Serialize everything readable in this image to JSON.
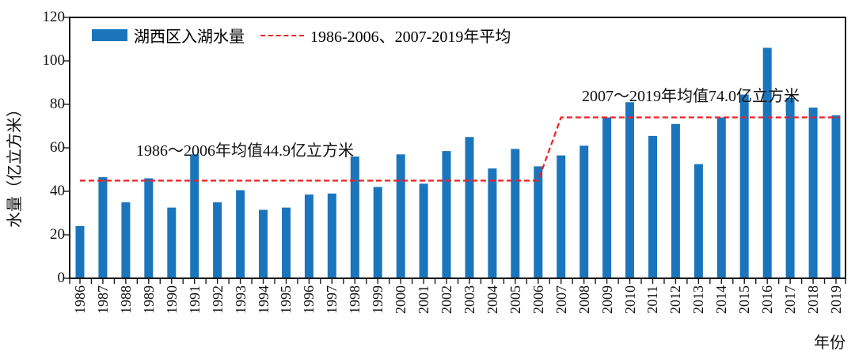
{
  "figure": {
    "ylabel": "水量（亿立方米）",
    "xlabel": "年份",
    "legend": {
      "bar_label": "湖西区入湖水量",
      "line_label": "1986-2006、2007-2019年平均"
    },
    "annotations": {
      "period1": "1986～2006年均值44.9亿立方米",
      "period2": "2007～2019年均值74.0亿立方米"
    }
  },
  "chart_data": {
    "type": "bar",
    "title": "",
    "xlabel": "年份",
    "ylabel": "水量（亿立方米）",
    "ylim": [
      0,
      120
    ],
    "yticks": [
      0,
      20,
      40,
      60,
      80,
      100,
      120
    ],
    "grid": false,
    "legend_position": "upper-left-inside",
    "categories": [
      "1986",
      "1987",
      "1988",
      "1989",
      "1990",
      "1991",
      "1992",
      "1993",
      "1994",
      "1995",
      "1996",
      "1997",
      "1998",
      "1999",
      "2000",
      "2001",
      "2002",
      "2003",
      "2004",
      "2005",
      "2006",
      "2007",
      "2008",
      "2009",
      "2010",
      "2011",
      "2012",
      "2013",
      "2014",
      "2015",
      "2016",
      "2017",
      "2018",
      "2019"
    ],
    "series": [
      {
        "name": "湖西区入湖水量",
        "values": [
          24,
          46.5,
          35,
          46,
          32.5,
          57,
          35,
          40.5,
          31.5,
          32.5,
          38.5,
          39,
          56,
          42,
          57,
          43.5,
          58.5,
          65,
          50.5,
          59.5,
          51.5,
          56.5,
          61,
          74,
          81,
          65.5,
          71,
          52.5,
          74,
          84.5,
          106,
          83,
          78.5,
          75
        ]
      }
    ],
    "reference_line": {
      "name": "1986-2006、2007-2019年平均",
      "style": "stepped-dashed",
      "segments": [
        {
          "period": "1986-2006",
          "mean": 44.9
        },
        {
          "period": "2007-2019",
          "mean": 74.0
        }
      ]
    },
    "colors": {
      "bar": "#1B75BC",
      "reference_line": "#EE2024",
      "axis": "#1a1a1a",
      "text": "#000000"
    }
  }
}
